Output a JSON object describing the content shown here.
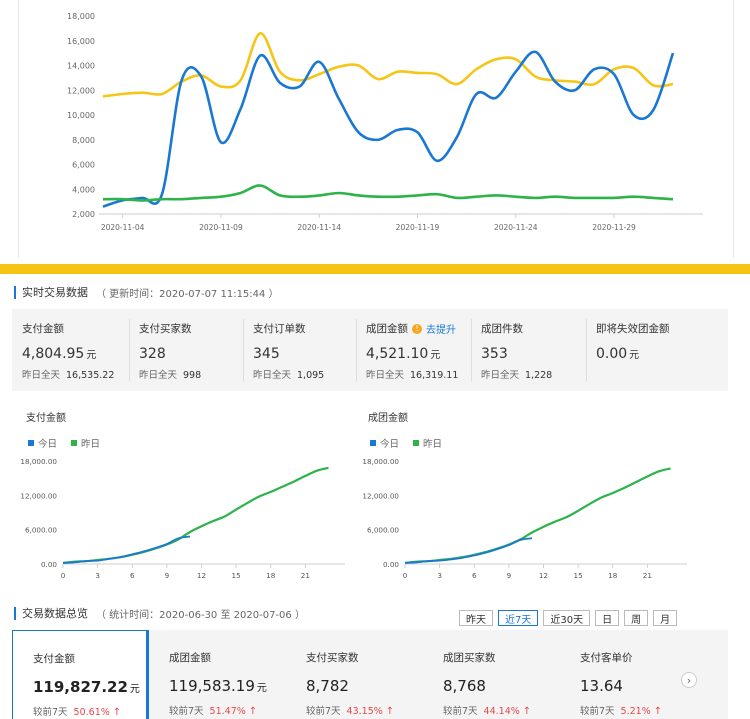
{
  "top_chart": {
    "y_ticks": [
      "18,000",
      "16,000",
      "14,000",
      "12,000",
      "10,000",
      "8,000",
      "6,000",
      "4,000",
      "2,000"
    ],
    "x_ticks": [
      "2020-11-04",
      "2020-11-09",
      "2020-11-14",
      "2020-11-19",
      "2020-11-24",
      "2020-11-29"
    ],
    "colors": {
      "yellow": "#f5c518",
      "blue": "#1a78d2",
      "green": "#2db34a"
    }
  },
  "realtime": {
    "title": "实时交易数据",
    "update": "（ 更新时间：2020-07-07 11:15:44 ）",
    "metrics": [
      {
        "label": "支付金额",
        "value": "4,804.95",
        "unit": "元",
        "sub_label": "昨日全天",
        "sub_value": "16,535.22"
      },
      {
        "label": "支付买家数",
        "value": "328",
        "unit": "",
        "sub_label": "昨日全天",
        "sub_value": "998"
      },
      {
        "label": "支付订单数",
        "value": "345",
        "unit": "",
        "sub_label": "昨日全天",
        "sub_value": "1,095"
      },
      {
        "label": "成团金额",
        "value": "4,521.10",
        "unit": "元",
        "sub_label": "昨日全天",
        "sub_value": "16,319.11",
        "link": "去提升",
        "info": "!"
      },
      {
        "label": "成团件数",
        "value": "353",
        "unit": "",
        "sub_label": "昨日全天",
        "sub_value": "1,228"
      },
      {
        "label": "即将失效团金额",
        "value": "0.00",
        "unit": "元",
        "sub_label": "",
        "sub_value": ""
      }
    ]
  },
  "mini_charts": {
    "left_title": "支付金额",
    "right_title": "成团金额",
    "legend_today": "今日",
    "legend_yesterday": "昨日",
    "y_ticks": [
      "18,000.00",
      "12,000.00",
      "6,000.00",
      "0.00"
    ],
    "x_ticks": [
      "0",
      "3",
      "6",
      "9",
      "12",
      "15",
      "18",
      "21"
    ]
  },
  "overview": {
    "title": "交易数据总览",
    "period": "（ 统计时间：2020-06-30 至 2020-07-06 ）",
    "ranges": [
      "昨天",
      "近7天",
      "近30天",
      "日",
      "周",
      "月"
    ],
    "active_range": "近7天",
    "cards": [
      {
        "label": "支付金额",
        "value": "119,827.22",
        "unit": "元",
        "sub_label": "较前7天",
        "pct": "50.61%"
      },
      {
        "label": "成团金额",
        "value": "119,583.19",
        "unit": "元",
        "sub_label": "较前7天",
        "pct": "51.47%"
      },
      {
        "label": "支付买家数",
        "value": "8,782",
        "unit": "",
        "sub_label": "较前7天",
        "pct": "43.15%"
      },
      {
        "label": "成团买家数",
        "value": "8,768",
        "unit": "",
        "sub_label": "较前7天",
        "pct": "44.14%"
      },
      {
        "label": "支付客单价",
        "value": "13.64",
        "unit": "",
        "sub_label": "较前7天",
        "pct": "5.21%"
      }
    ],
    "next_icon": "chevron-right-icon"
  },
  "chart_data": [
    {
      "type": "line",
      "title": "",
      "x": [
        "2020-11-03",
        "2020-11-04",
        "2020-11-05",
        "2020-11-06",
        "2020-11-07",
        "2020-11-08",
        "2020-11-09",
        "2020-11-10",
        "2020-11-11",
        "2020-11-12",
        "2020-11-13",
        "2020-11-14",
        "2020-11-15",
        "2020-11-16",
        "2020-11-17",
        "2020-11-18",
        "2020-11-19",
        "2020-11-20",
        "2020-11-21",
        "2020-11-22",
        "2020-11-23",
        "2020-11-24",
        "2020-11-25",
        "2020-11-26",
        "2020-11-27",
        "2020-11-28",
        "2020-11-29",
        "2020-11-30",
        "2020-12-01",
        "2020-12-02"
      ],
      "ylim": [
        2000,
        18000
      ],
      "series": [
        {
          "color": "#f5c518",
          "values": [
            11500,
            11700,
            11800,
            11700,
            12700,
            13200,
            12300,
            12800,
            16600,
            13500,
            12800,
            13300,
            13900,
            14000,
            12900,
            13500,
            13400,
            13300,
            12500,
            13700,
            14500,
            14500,
            13100,
            12800,
            12700,
            12500,
            13700,
            13800,
            12400,
            12500
          ]
        },
        {
          "color": "#1a78d2",
          "values": [
            2600,
            3100,
            3300,
            3600,
            12800,
            13100,
            7800,
            10500,
            14800,
            12600,
            12300,
            14300,
            11300,
            8600,
            8000,
            8800,
            8600,
            6300,
            8200,
            11700,
            11400,
            13500,
            15100,
            12700,
            12000,
            13700,
            13300,
            10000,
            10400,
            15000
          ]
        },
        {
          "color": "#2db34a",
          "values": [
            3200,
            3200,
            3100,
            3200,
            3200,
            3300,
            3400,
            3700,
            4300,
            3500,
            3400,
            3500,
            3700,
            3500,
            3400,
            3400,
            3500,
            3600,
            3300,
            3400,
            3500,
            3400,
            3300,
            3400,
            3300,
            3300,
            3300,
            3400,
            3300,
            3200
          ]
        }
      ]
    },
    {
      "type": "line",
      "title": "支付金额",
      "x": [
        0,
        1,
        2,
        3,
        4,
        5,
        6,
        7,
        8,
        9,
        10,
        11,
        12,
        13,
        14,
        15,
        16,
        17,
        18,
        19,
        20,
        21,
        22,
        23
      ],
      "ylim": [
        0,
        18000
      ],
      "series": [
        {
          "name": "今日",
          "color": "#1a78d2",
          "values": [
            200,
            300,
            500,
            600,
            900,
            1200,
            1700,
            2200,
            2800,
            3500,
            4500,
            4800,
            null,
            null,
            null,
            null,
            null,
            null,
            null,
            null,
            null,
            null,
            null,
            null
          ]
        },
        {
          "name": "昨日",
          "color": "#2db34a",
          "values": [
            200,
            400,
            500,
            700,
            900,
            1200,
            1600,
            2100,
            2700,
            3400,
            4300,
            5600,
            6600,
            7500,
            8300,
            9500,
            10700,
            11800,
            12600,
            13500,
            14400,
            15400,
            16300,
            16800
          ]
        }
      ]
    },
    {
      "type": "line",
      "title": "成团金额",
      "x": [
        0,
        1,
        2,
        3,
        4,
        5,
        6,
        7,
        8,
        9,
        10,
        11,
        12,
        13,
        14,
        15,
        16,
        17,
        18,
        19,
        20,
        21,
        22,
        23
      ],
      "ylim": [
        0,
        18000
      ],
      "series": [
        {
          "name": "今日",
          "color": "#1a78d2",
          "values": [
            200,
            300,
            500,
            600,
            800,
            1100,
            1500,
            2000,
            2600,
            3300,
            4200,
            4500,
            null,
            null,
            null,
            null,
            null,
            null,
            null,
            null,
            null,
            null,
            null,
            null
          ]
        },
        {
          "name": "昨日",
          "color": "#2db34a",
          "values": [
            200,
            400,
            500,
            700,
            900,
            1200,
            1600,
            2100,
            2700,
            3400,
            4300,
            5500,
            6500,
            7400,
            8200,
            9300,
            10500,
            11600,
            12400,
            13300,
            14300,
            15300,
            16200,
            16700
          ]
        }
      ]
    }
  ]
}
